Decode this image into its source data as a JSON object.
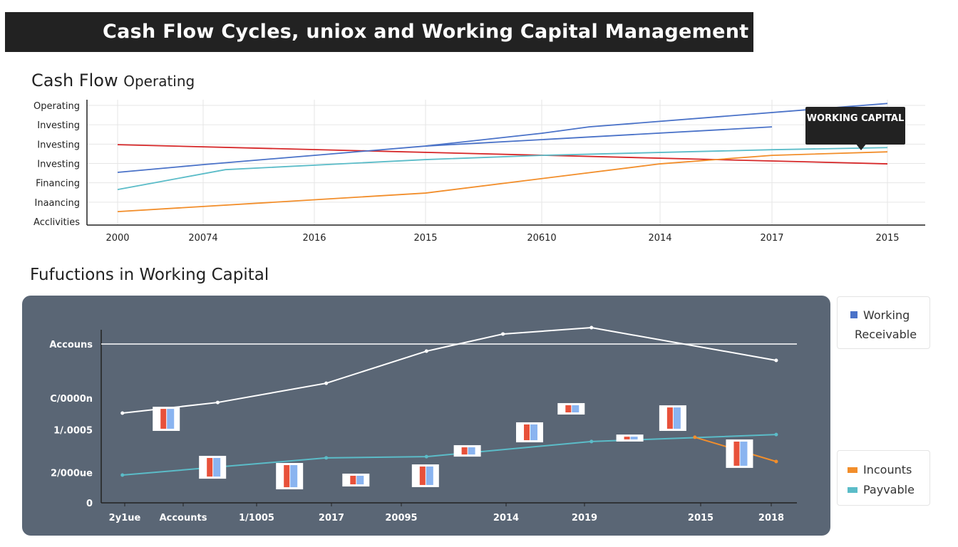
{
  "title": "Cash Flow Cycles, uniox and Working Capital Management",
  "chart_data": [
    {
      "type": "line",
      "title": "Cash Flow",
      "title_suffix": "Operating",
      "categories": [
        "2000",
        "20074",
        "2016",
        "2015",
        "20610",
        "2014",
        "2017",
        "2015"
      ],
      "y_tick_labels": [
        "Acclivities",
        "Inaancing",
        "Financing",
        "Investing",
        "Investing",
        "Investing",
        "Operating"
      ],
      "ylim": [
        0,
        6
      ],
      "grid": true,
      "annotation": "WORKING CAPITAL",
      "series": [
        {
          "color": "#d62728",
          "points": [
            [
              0,
              3.97
            ],
            [
              7,
              2.98
            ]
          ]
        },
        {
          "color": "#4a72c8",
          "points": [
            [
              0,
              2.54
            ],
            [
              1,
              2.94
            ],
            [
              2,
              3.42
            ],
            [
              3,
              3.9
            ],
            [
              4,
              4.56
            ],
            [
              4.4,
              4.89
            ],
            [
              7,
              6.1
            ]
          ]
        },
        {
          "color": "#4a72c8",
          "points": [
            [
              3,
              3.9
            ],
            [
              6,
              4.89
            ]
          ]
        },
        {
          "color": "#5bbcc8",
          "points": [
            [
              0,
              1.65
            ],
            [
              1.2,
              2.68
            ],
            [
              3,
              3.2
            ],
            [
              4,
              3.42
            ],
            [
              6,
              3.71
            ],
            [
              7,
              3.82
            ]
          ]
        },
        {
          "color": "#f28e2b",
          "points": [
            [
              0,
              0.51
            ],
            [
              3,
              1.47
            ],
            [
              5,
              2.98
            ],
            [
              6,
              3.42
            ],
            [
              7,
              3.6
            ]
          ]
        }
      ]
    },
    {
      "type": "line",
      "title": "Fufuctions in Working Capital",
      "categories": [
        "2y1ue",
        "Accounts",
        "1/1005",
        "2017",
        "20095",
        "2014",
        "2019",
        "2015",
        "2018"
      ],
      "y_ticks": [
        {
          "label": "Accouns",
          "value": 100
        },
        {
          "label": "C/0000n",
          "value": 66
        },
        {
          "label": "1/.0005",
          "value": 46
        },
        {
          "label": "2/000ue",
          "value": 19
        },
        {
          "label": "0",
          "value": 0
        }
      ],
      "ylim": [
        0,
        115
      ],
      "reference_line": 100,
      "background": "#5a6675",
      "series": [
        {
          "color": "#ffffff",
          "points": [
            [
              -0.04,
              56.5
            ],
            [
              1.47,
              63.2
            ],
            [
              2.93,
              75.3
            ],
            [
              4.24,
              95.5
            ],
            [
              4.97,
              106.3
            ],
            [
              6.06,
              110.3
            ],
            [
              8.07,
              89.7
            ]
          ]
        },
        {
          "color": "#5bbcc8",
          "points": [
            [
              -0.04,
              17.5
            ],
            [
              2.93,
              28.3
            ],
            [
              4.24,
              29.1
            ],
            [
              6.06,
              38.6
            ],
            [
              8.07,
              43.0
            ]
          ]
        },
        {
          "color": "#f28e2b",
          "points": [
            [
              6.95,
              41.3
            ],
            [
              8.07,
              26.0
            ]
          ]
        }
      ],
      "range_markers": [
        {
          "x": 0.71,
          "low": 45.3,
          "high": 60.5
        },
        {
          "x": 1.4,
          "low": 15.2,
          "high": 29.6
        },
        {
          "x": 2.44,
          "low": 8.5,
          "high": 25.1
        },
        {
          "x": 3.35,
          "low": 10.3,
          "high": 18.4
        },
        {
          "x": 4.23,
          "low": 9.9,
          "high": 24.2
        },
        {
          "x": 4.63,
          "low": 29.1,
          "high": 36.3
        },
        {
          "x": 5.3,
          "low": 38.1,
          "high": 50.7
        },
        {
          "x": 5.83,
          "low": 55.6,
          "high": 62.8
        },
        {
          "x": 6.39,
          "low": 38.6,
          "high": 43.0
        },
        {
          "x": 6.76,
          "low": 45.3,
          "high": 61.4
        },
        {
          "x": 7.55,
          "low": 22.0,
          "high": 39.9
        }
      ],
      "marker_colors": [
        "#e8513a",
        "#8ab4f0"
      ],
      "legend": [
        {
          "lines": [
            "Working",
            "Receivable"
          ],
          "color": "#4a72c8"
        },
        {
          "lines": [
            "Incounts"
          ],
          "color": "#f28e2b"
        },
        {
          "lines": [
            "Payvable"
          ],
          "color": "#5bbcc8"
        }
      ]
    }
  ]
}
